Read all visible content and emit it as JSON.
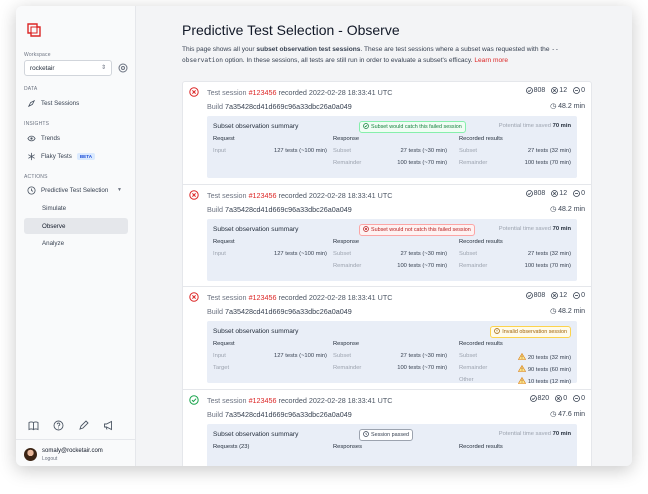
{
  "sidebar": {
    "workspace_label": "Workspace",
    "workspace": "rocketair",
    "sections": {
      "data": "DATA",
      "insights": "INSIGHTS",
      "actions": "ACTIONS"
    },
    "items": {
      "test_sessions": "Test Sessions",
      "trends": "Trends",
      "flaky_tests": "Flaky Tests",
      "beta": "BETA",
      "pts": "Predictive Test Selection",
      "simulate": "Simulate",
      "observe": "Observe",
      "analyze": "Analyze"
    },
    "active": "Observe",
    "user": {
      "email": "somaly@rocketair.com",
      "logout": "Logout"
    }
  },
  "page": {
    "title": "Predictive Test Selection - Observe",
    "desc_a": "This page shows all your ",
    "desc_bold": "subset observation test sessions",
    "desc_b": ". These are test sessions where a subset was requested with the ",
    "desc_code": "--observation",
    "desc_c": " option. In these sessions, all tests are still run in order to evaluate a subset's efficacy. ",
    "desc_link": "Learn more"
  },
  "labels": {
    "test_session": "Test session",
    "recorded": "recorded",
    "build": "Build",
    "summary": "Subset observation summary",
    "potential": "Potential time saved"
  },
  "sessions": [
    {
      "status": "failed",
      "id": "#123456",
      "date": "2022-02-28 18:33:41 UTC",
      "build": "7a35428cd41d669c96a33dbc26a0a049",
      "stats": [
        "808",
        "12",
        "0"
      ],
      "duration": "48.2 min",
      "badge": "Subset would catch this failed session",
      "badge_kind": "green",
      "saved": "70 min",
      "headers": [
        "Request",
        "Response",
        "Recorded results"
      ],
      "rows": [
        {
          "a_l": "Input",
          "a_v": "127 tests (~100 min)",
          "b_l": "Subset",
          "b_v": "27 tests (~30 min)",
          "c_l": "Subset",
          "c_v": "27 tests (32 min)"
        },
        {
          "a_l": "",
          "a_v": "",
          "b_l": "Remainder",
          "b_v": "100 tests (~70 min)",
          "c_l": "Remainder",
          "c_v": "100 tests (70 min)"
        }
      ]
    },
    {
      "status": "failed",
      "id": "#123456",
      "date": "2022-02-28 18:33:41 UTC",
      "build": "7a35428cd41d669c96a33dbc26a0a049",
      "stats": [
        "808",
        "12",
        "0"
      ],
      "duration": "48.2 min",
      "badge": "Subset would not catch this failed session",
      "badge_kind": "red",
      "saved": "70 min",
      "headers": [
        "Request",
        "Response",
        "Recorded results"
      ],
      "rows": [
        {
          "a_l": "Input",
          "a_v": "127 tests (~100 min)",
          "b_l": "Subset",
          "b_v": "27 tests (~30 min)",
          "c_l": "Subset",
          "c_v": "27 tests (32 min)"
        },
        {
          "a_l": "",
          "a_v": "",
          "b_l": "Remainder",
          "b_v": "100 tests (~70 min)",
          "c_l": "Remainder",
          "c_v": "100 tests (70 min)"
        }
      ]
    },
    {
      "status": "failed",
      "id": "#123456",
      "date": "2022-02-28 18:33:41 UTC",
      "build": "7a35428cd41d669c96a33dbc26a0a049",
      "stats": [
        "808",
        "12",
        "0"
      ],
      "duration": "48.2 min",
      "badge": "Invalid observation session",
      "badge_kind": "amber",
      "saved": "",
      "headers": [
        "Request",
        "Response",
        "Recorded results"
      ],
      "rows": [
        {
          "a_l": "Input",
          "a_v": "127 tests (~100 min)",
          "b_l": "Subset",
          "b_v": "27 tests (~30 min)",
          "c_l": "Subset",
          "c_v": "20 tests (32 min)",
          "warn": true
        },
        {
          "a_l": "Target",
          "a_v": "",
          "b_l": "Remainder",
          "b_v": "100 tests (~70 min)",
          "c_l": "Remainder",
          "c_v": "90 tests (60 min)",
          "warn": true
        },
        {
          "a_l": "",
          "a_v": "",
          "b_l": "",
          "b_v": "",
          "c_l": "Other",
          "c_v": "10 tests (12 min)",
          "warn": true
        }
      ]
    },
    {
      "status": "passed",
      "id": "#123456",
      "date": "2022-02-28 18:33:41 UTC",
      "build": "7a35428cd41d669c96a33dbc26a0a049",
      "stats": [
        "820",
        "0",
        "0"
      ],
      "duration": "47.6 min",
      "badge": "Session passed",
      "badge_kind": "gray",
      "saved": "70 min",
      "headers": [
        "Requests (23)",
        "Responses",
        "Recorded results"
      ],
      "rows": []
    }
  ],
  "colors": {
    "accent": "#dc2626",
    "failed": "#dc2626",
    "passed": "#16a34a",
    "summary_bg": "#e9eef7"
  }
}
